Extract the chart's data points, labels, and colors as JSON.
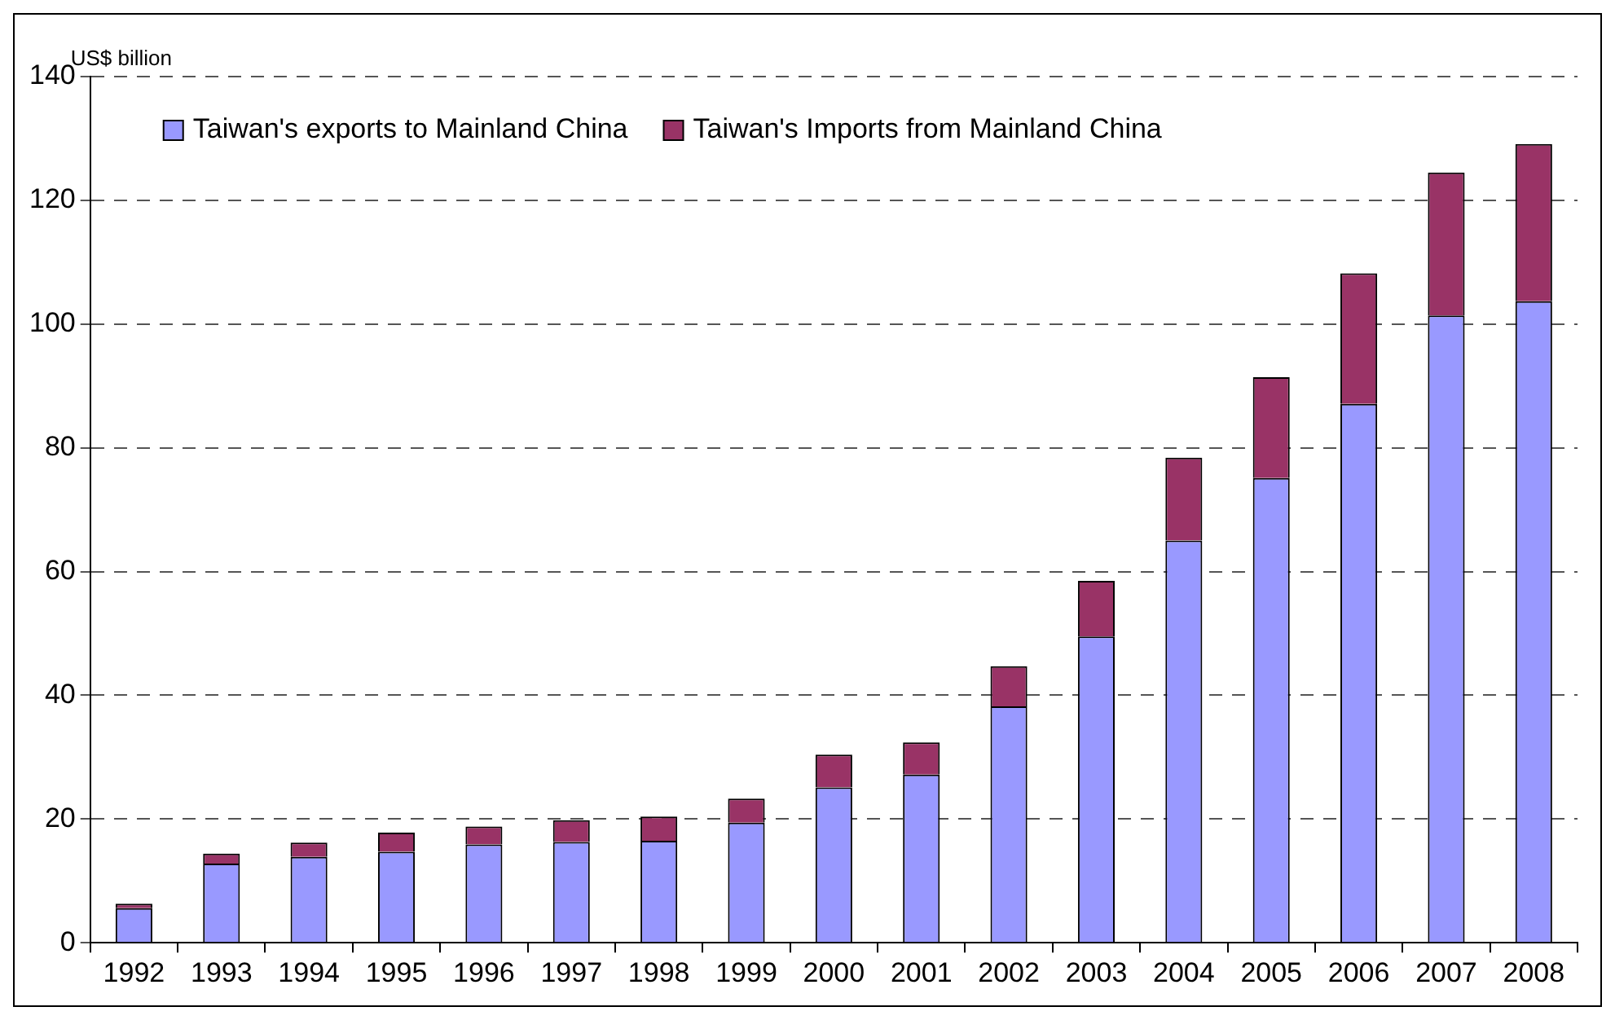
{
  "chart_data": {
    "type": "bar",
    "ylabel": "US$ billion",
    "stacked": true,
    "grid": "y",
    "legend": "top left",
    "categories": [
      "1992",
      "1993",
      "1994",
      "1995",
      "1996",
      "1997",
      "1998",
      "1999",
      "2000",
      "2001",
      "2002",
      "2003",
      "2004",
      "2005",
      "2006",
      "2007",
      "2008"
    ],
    "series": [
      {
        "name": "Taiwan's exports to Mainland China",
        "color": "#9999ff",
        "values": [
          5.6,
          12.8,
          13.9,
          14.7,
          15.9,
          16.3,
          16.5,
          19.4,
          25.1,
          27.2,
          38.2,
          49.5,
          65.0,
          75.1,
          87.1,
          101.4,
          103.7
        ]
      },
      {
        "name": "Taiwan's Imports from Mainland China",
        "color": "#993366",
        "values": [
          0.7,
          1.6,
          2.3,
          3.1,
          2.9,
          3.5,
          3.9,
          3.9,
          5.3,
          5.2,
          6.5,
          9.0,
          13.4,
          16.3,
          21.1,
          23.1,
          25.4
        ]
      }
    ],
    "ylim": [
      0,
      140
    ],
    "yticks": [
      0,
      20,
      40,
      60,
      80,
      100,
      120,
      140
    ]
  }
}
